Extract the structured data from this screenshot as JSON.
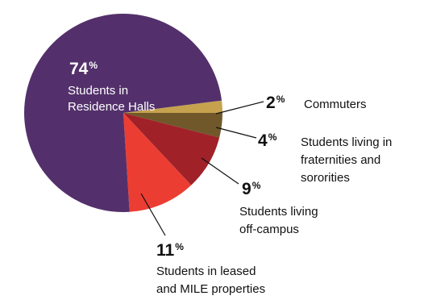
{
  "chart_data": {
    "type": "pie",
    "slices": [
      {
        "name": "Students in Residence Halls",
        "label_lines": [
          "Students in",
          "Residence Halls"
        ],
        "value": 74,
        "pct_text": "74",
        "color": "#53306b"
      },
      {
        "name": "Students in leased and MILE properties",
        "label_lines": [
          "Students in leased",
          "and MILE properties"
        ],
        "value": 11,
        "pct_text": "11",
        "color": "#ec3d33"
      },
      {
        "name": "Students living off-campus",
        "label_lines": [
          "Students living",
          "off-campus"
        ],
        "value": 9,
        "pct_text": "9",
        "color": "#a02128"
      },
      {
        "name": "Students living in fraternities and sororities",
        "label_lines": [
          "Students living in",
          "fraternities and",
          "sororities"
        ],
        "value": 4,
        "pct_text": "4",
        "color": "#70582a"
      },
      {
        "name": "Commuters",
        "label_lines": [
          "Commuters"
        ],
        "value": 2,
        "pct_text": "2",
        "color": "#c6a24f"
      }
    ],
    "percent_symbol": "%",
    "title": "",
    "legend": "none"
  }
}
